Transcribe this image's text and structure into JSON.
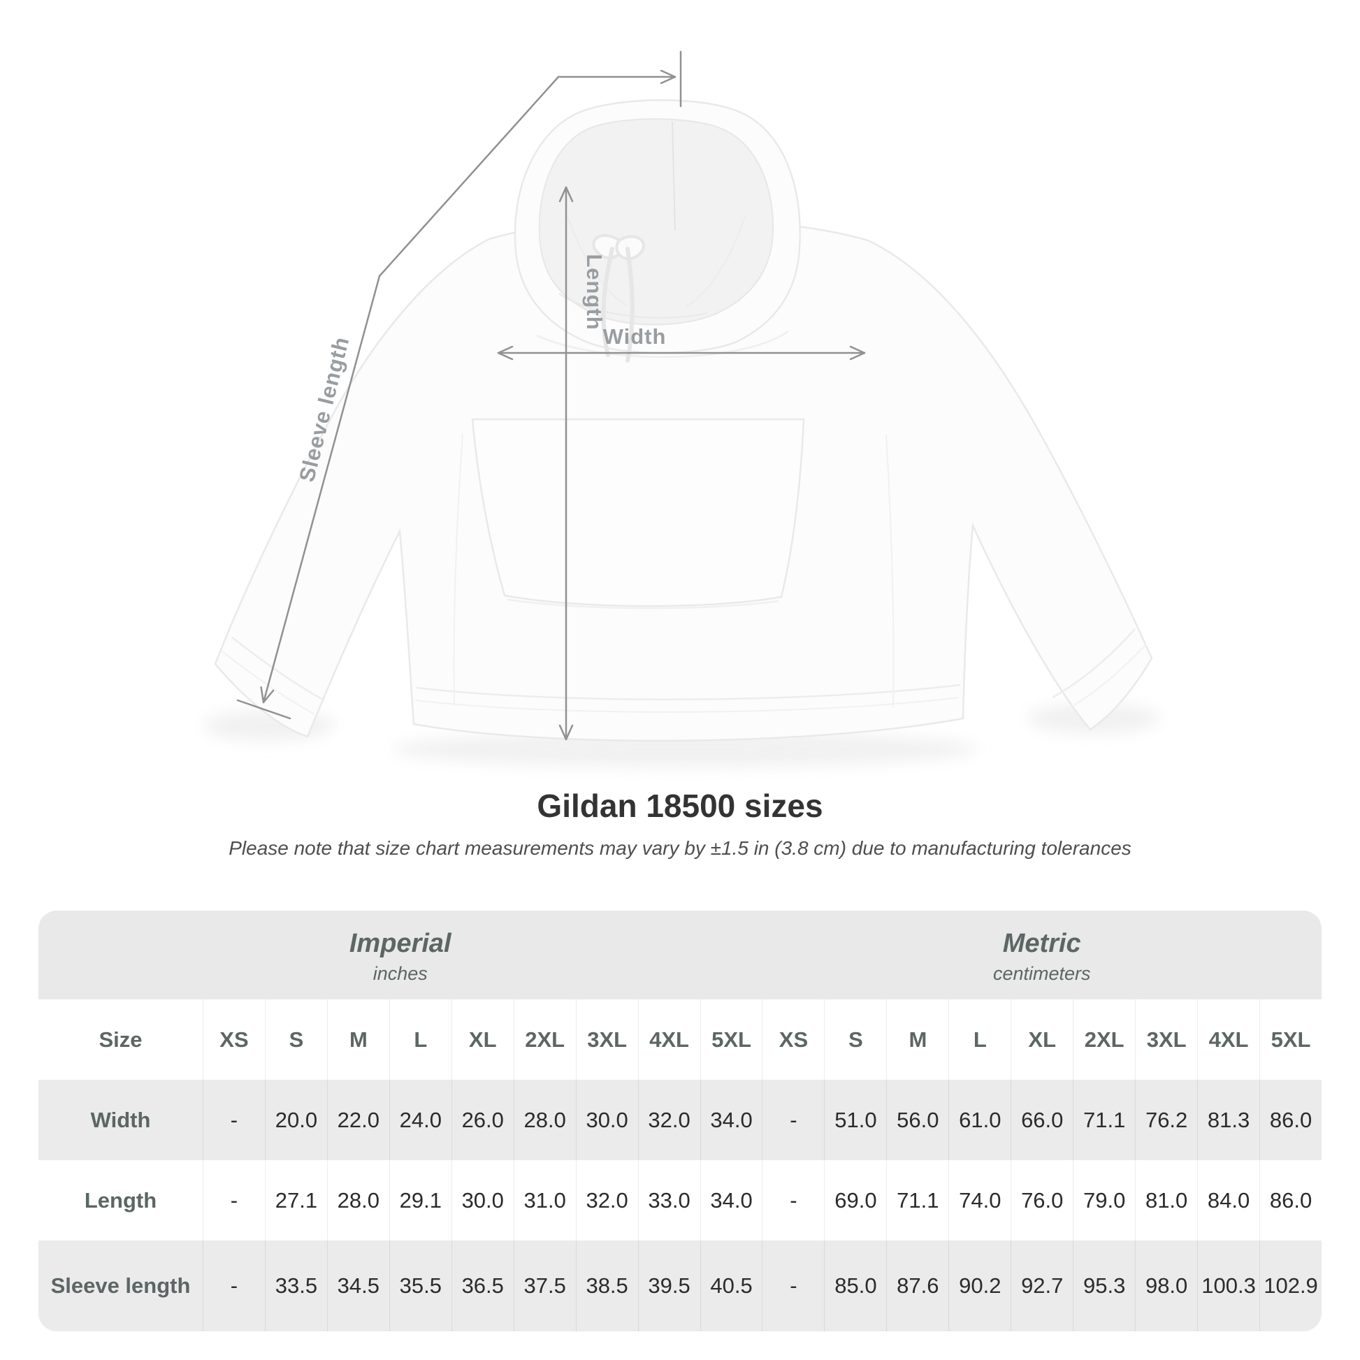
{
  "diagram": {
    "length_label": "Length",
    "width_label": "Width",
    "sleeve_label": "Sleeve length"
  },
  "heading": {
    "title": "Gildan 18500 sizes",
    "subtitle": "Please note that size chart measurements may vary by ±1.5 in (3.8 cm) due to manufacturing tolerances"
  },
  "table": {
    "size_col_header": "Size",
    "groups": [
      {
        "name": "Imperial",
        "unit": "inches",
        "sizes": [
          "XS",
          "S",
          "M",
          "L",
          "XL",
          "2XL",
          "3XL",
          "4XL",
          "5XL"
        ]
      },
      {
        "name": "Metric",
        "unit": "centimeters",
        "sizes": [
          "XS",
          "S",
          "M",
          "L",
          "XL",
          "2XL",
          "3XL",
          "4XL",
          "5XL"
        ]
      }
    ],
    "rows": [
      {
        "label": "Width",
        "imperial": [
          "-",
          "20.0",
          "22.0",
          "24.0",
          "26.0",
          "28.0",
          "30.0",
          "32.0",
          "34.0"
        ],
        "metric": [
          "-",
          "51.0",
          "56.0",
          "61.0",
          "66.0",
          "71.1",
          "76.2",
          "81.3",
          "86.0"
        ]
      },
      {
        "label": "Length",
        "imperial": [
          "-",
          "27.1",
          "28.0",
          "29.1",
          "30.0",
          "31.0",
          "32.0",
          "33.0",
          "34.0"
        ],
        "metric": [
          "-",
          "69.0",
          "71.1",
          "74.0",
          "76.0",
          "79.0",
          "81.0",
          "84.0",
          "86.0"
        ]
      },
      {
        "label": "Sleeve length",
        "imperial": [
          "-",
          "33.5",
          "34.5",
          "35.5",
          "36.5",
          "37.5",
          "38.5",
          "39.5",
          "40.5"
        ],
        "metric": [
          "-",
          "85.0",
          "87.6",
          "90.2",
          "92.7",
          "95.3",
          "98.0",
          "100.3",
          "102.9"
        ]
      }
    ]
  },
  "colors": {
    "band_bg": "#e9e9e9",
    "row_alt_bg": "#ebebeb",
    "header_text": "#5c6665",
    "value_text": "#2b2b2b",
    "measure_line": "#8f9193",
    "measure_label": "#9a9da0"
  }
}
